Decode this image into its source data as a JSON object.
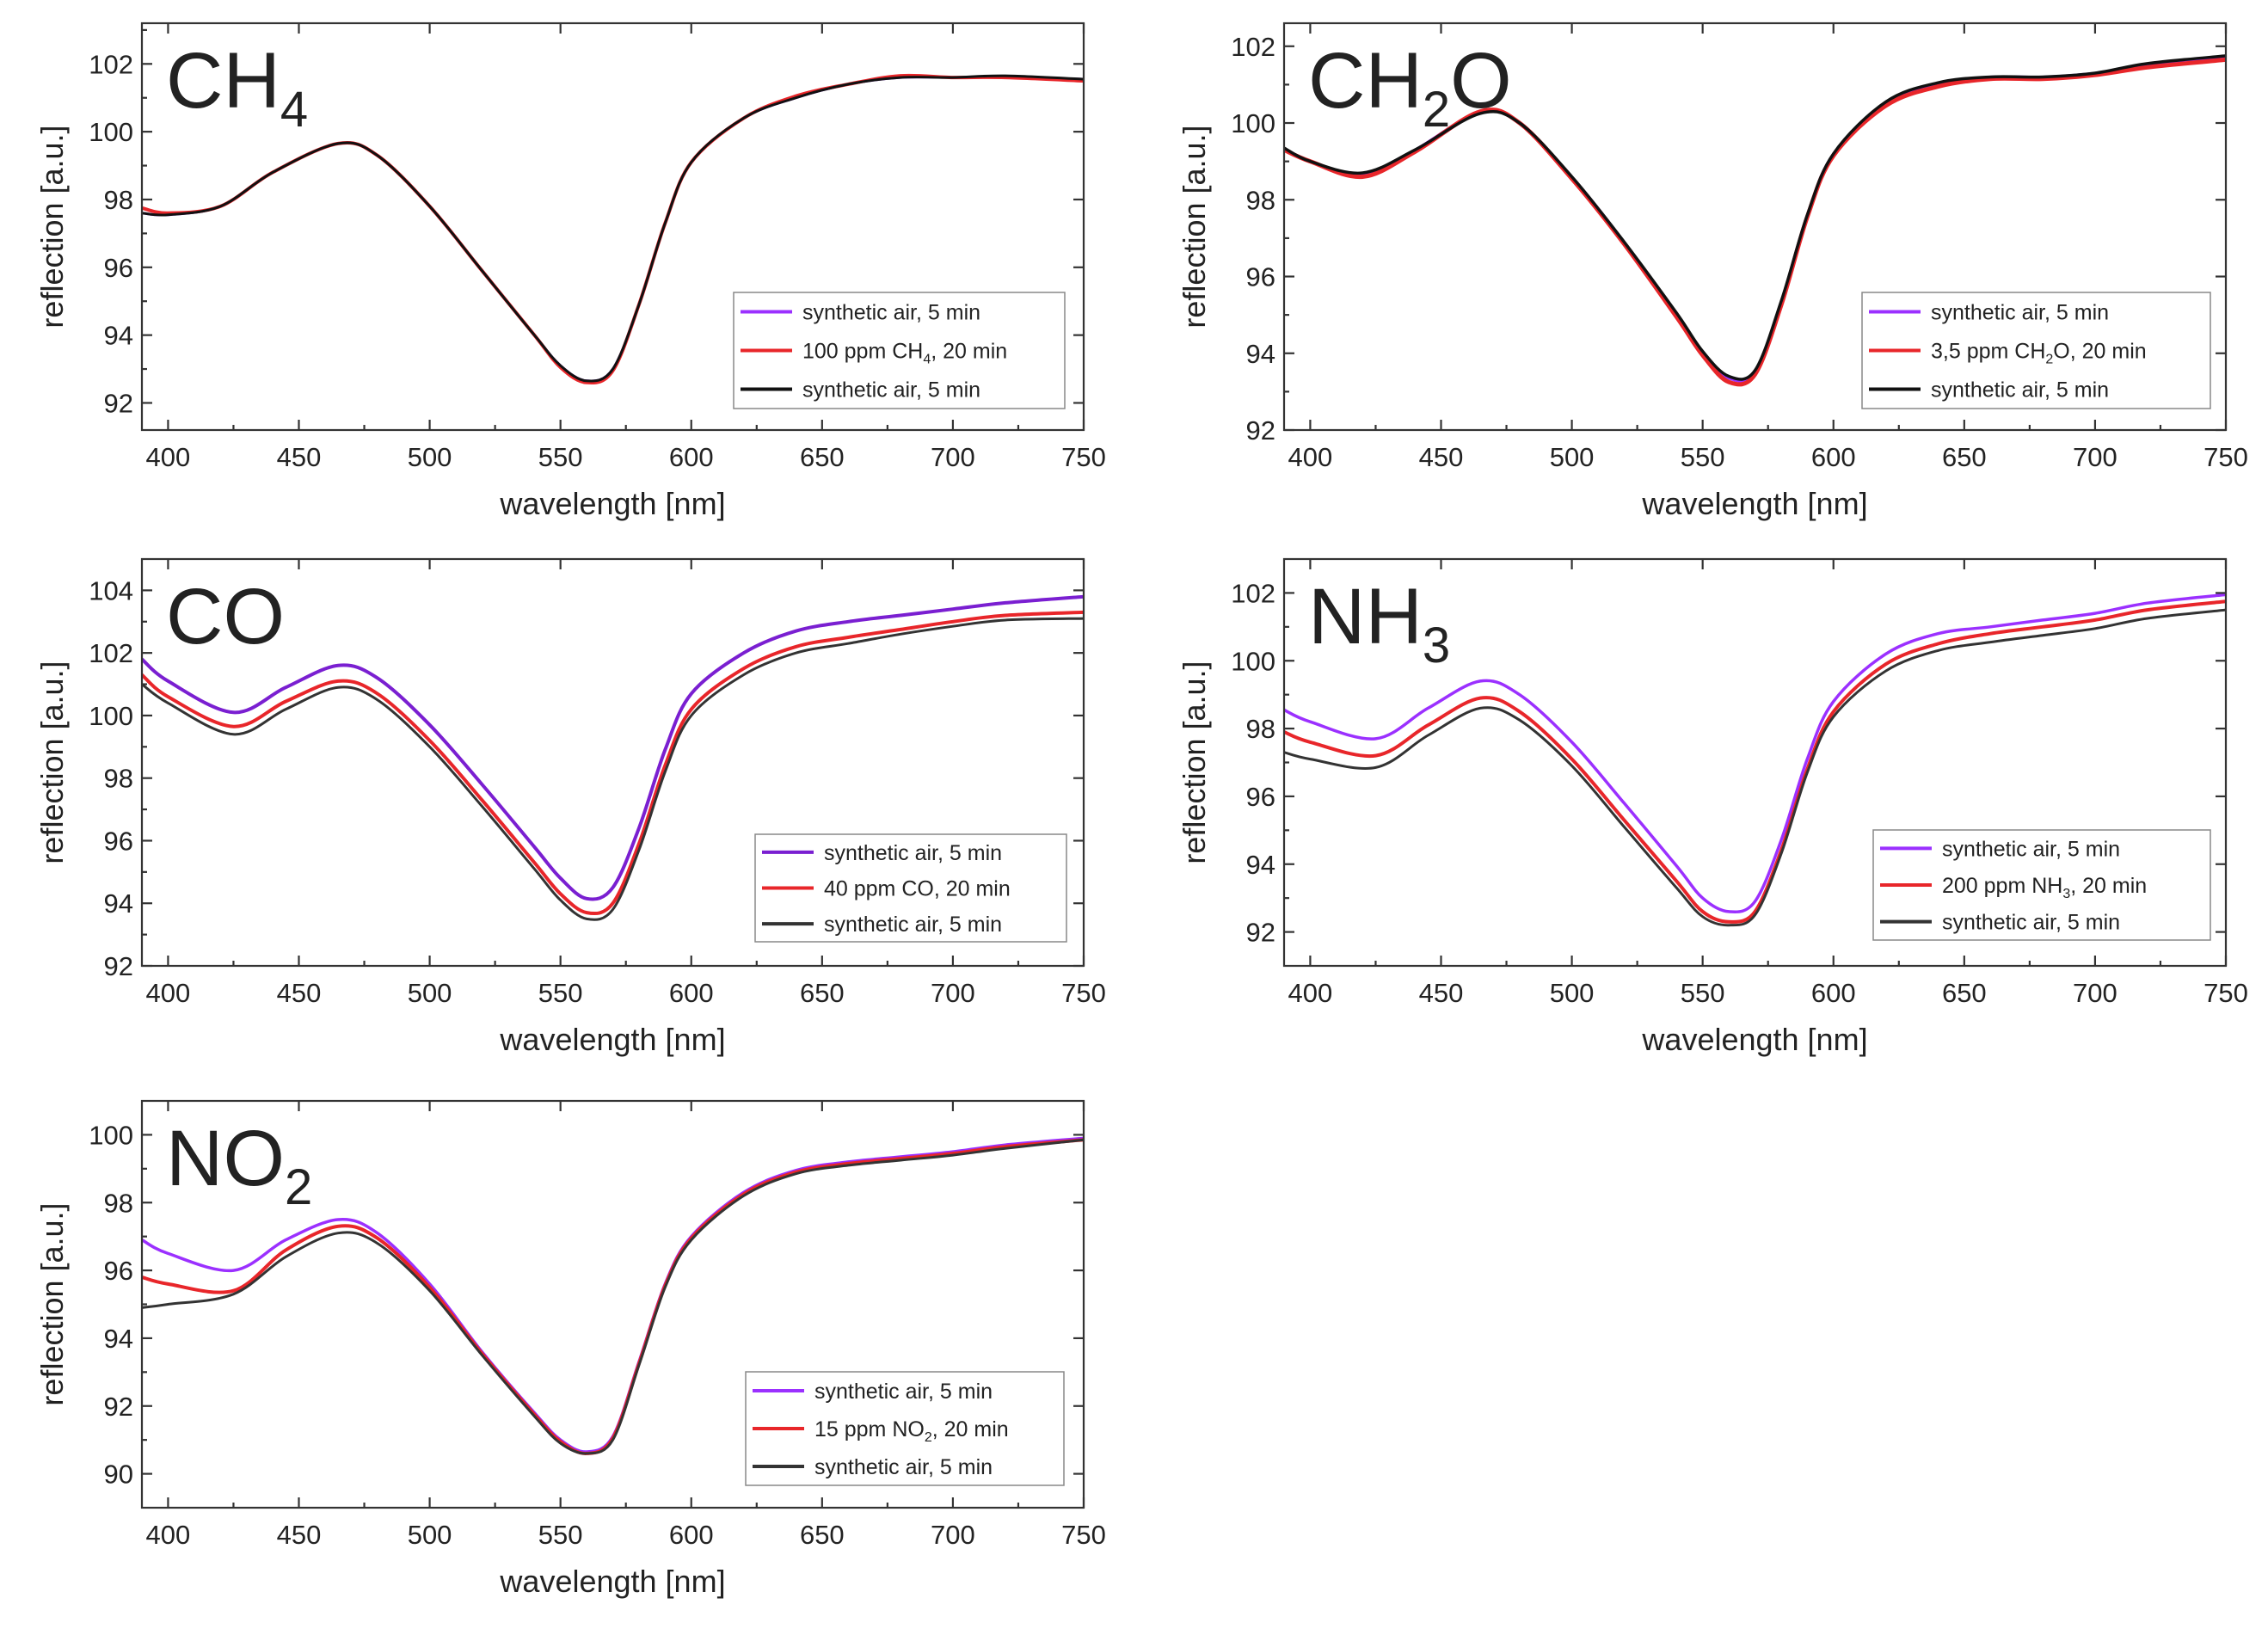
{
  "chart_data": [
    {
      "type": "line",
      "gas": "CH",
      "gas_sub": "4",
      "xlabel": "wavelength [nm]",
      "ylabel": "reflection [a.u.]",
      "xlim": [
        390,
        750
      ],
      "ylim": [
        91.2,
        103.2
      ],
      "xticks": [
        400,
        450,
        500,
        550,
        600,
        650,
        700,
        750
      ],
      "yticks": [
        92,
        94,
        96,
        98,
        100,
        102
      ],
      "legend": [
        {
          "pre": "synthetic air, 5 min",
          "sub": "",
          "post": "",
          "color": "#9b30ff"
        },
        {
          "pre": "100 ppm CH",
          "sub": "4",
          "post": ", 20 min",
          "color": "#e8262a"
        },
        {
          "pre": "synthetic air, 5 min",
          "sub": "",
          "post": "",
          "color": "#111111"
        }
      ],
      "series": [
        {
          "name": "synthetic air, 5 min (before)",
          "color": "#9b30ff",
          "width": 3,
          "x": [
            390,
            400,
            420,
            440,
            465,
            480,
            500,
            520,
            540,
            550,
            560,
            570,
            580,
            590,
            600,
            620,
            640,
            660,
            680,
            700,
            720,
            750
          ],
          "y": [
            97.6,
            97.55,
            97.8,
            98.8,
            99.65,
            99.3,
            97.8,
            95.9,
            94.0,
            93.1,
            92.65,
            93.0,
            94.9,
            97.3,
            99.1,
            100.4,
            101.0,
            101.4,
            101.6,
            101.6,
            101.6,
            101.55
          ]
        },
        {
          "name": "100 ppm CH4, 20 min",
          "color": "#e8262a",
          "width": 4,
          "x": [
            390,
            400,
            420,
            440,
            465,
            480,
            500,
            520,
            540,
            550,
            560,
            570,
            580,
            590,
            600,
            620,
            640,
            660,
            680,
            700,
            720,
            750
          ],
          "y": [
            97.75,
            97.6,
            97.8,
            98.8,
            99.65,
            99.3,
            97.8,
            95.9,
            94.0,
            93.05,
            92.6,
            92.95,
            94.9,
            97.3,
            99.1,
            100.4,
            101.05,
            101.4,
            101.65,
            101.6,
            101.6,
            101.5
          ]
        },
        {
          "name": "synthetic air, 5 min (after)",
          "color": "#111111",
          "width": 3,
          "x": [
            390,
            400,
            420,
            440,
            465,
            480,
            500,
            520,
            540,
            550,
            560,
            570,
            580,
            590,
            600,
            620,
            640,
            660,
            680,
            700,
            720,
            750
          ],
          "y": [
            97.6,
            97.55,
            97.8,
            98.8,
            99.65,
            99.3,
            97.8,
            95.9,
            94.0,
            93.1,
            92.65,
            93.0,
            94.9,
            97.3,
            99.1,
            100.4,
            101.0,
            101.4,
            101.6,
            101.6,
            101.65,
            101.55
          ]
        }
      ]
    },
    {
      "type": "line",
      "gas": "CH",
      "gas_sub": "2",
      "gas_post": "O",
      "xlabel": "wavelength [nm]",
      "ylabel": "reflection [a.u.]",
      "xlim": [
        390,
        750
      ],
      "ylim": [
        92,
        102.6
      ],
      "xticks": [
        400,
        450,
        500,
        550,
        600,
        650,
        700,
        750
      ],
      "yticks": [
        92,
        94,
        96,
        98,
        100,
        102
      ],
      "legend": [
        {
          "pre": "synthetic air, 5 min",
          "sub": "",
          "post": "",
          "color": "#9b30ff"
        },
        {
          "pre": "3,5 ppm CH",
          "sub": "2",
          "post": "O, 20 min",
          "color": "#e8262a"
        },
        {
          "pre": "synthetic air, 5 min",
          "sub": "",
          "post": "",
          "color": "#111111"
        }
      ],
      "series": [
        {
          "name": "synthetic air, 5 min (before)",
          "color": "#9b30ff",
          "width": 3,
          "x": [
            390,
            400,
            420,
            440,
            465,
            480,
            500,
            520,
            540,
            550,
            560,
            570,
            580,
            590,
            600,
            620,
            640,
            660,
            680,
            700,
            720,
            750
          ],
          "y": [
            99.3,
            99.0,
            98.65,
            99.3,
            100.3,
            100.0,
            98.6,
            96.9,
            95.0,
            94.0,
            93.35,
            93.5,
            95.3,
            97.6,
            99.2,
            100.5,
            101.0,
            101.2,
            101.2,
            101.3,
            101.5,
            101.7
          ]
        },
        {
          "name": "3,5 ppm CH2O, 20 min",
          "color": "#e8262a",
          "width": 5,
          "x": [
            390,
            400,
            420,
            440,
            465,
            480,
            500,
            520,
            540,
            550,
            560,
            570,
            580,
            590,
            600,
            620,
            640,
            660,
            680,
            700,
            720,
            750
          ],
          "y": [
            99.3,
            99.0,
            98.6,
            99.25,
            100.3,
            100.0,
            98.55,
            96.85,
            94.95,
            93.95,
            93.25,
            93.45,
            95.25,
            97.55,
            99.15,
            100.45,
            100.95,
            101.15,
            101.15,
            101.25,
            101.45,
            101.65
          ]
        },
        {
          "name": "synthetic air, 5 min (after)",
          "color": "#111111",
          "width": 3.5,
          "x": [
            390,
            400,
            420,
            440,
            465,
            480,
            500,
            520,
            540,
            550,
            560,
            570,
            580,
            590,
            600,
            620,
            640,
            660,
            680,
            700,
            720,
            750
          ],
          "y": [
            99.35,
            99.0,
            98.7,
            99.3,
            100.25,
            100.0,
            98.6,
            96.9,
            95.05,
            94.05,
            93.4,
            93.55,
            95.35,
            97.6,
            99.2,
            100.55,
            101.05,
            101.2,
            101.2,
            101.3,
            101.55,
            101.75
          ]
        }
      ]
    },
    {
      "type": "line",
      "gas": "CO",
      "gas_sub": "",
      "xlabel": "wavelength [nm]",
      "ylabel": "reflection [a.u.]",
      "xlim": [
        390,
        750
      ],
      "ylim": [
        92,
        105
      ],
      "xticks": [
        400,
        450,
        500,
        550,
        600,
        650,
        700,
        750
      ],
      "yticks": [
        92,
        94,
        96,
        98,
        100,
        102,
        104
      ],
      "legend": [
        {
          "pre": "synthetic air, 5 min",
          "sub": "",
          "post": "",
          "color": "#7a1fd1"
        },
        {
          "pre": "40 ppm CO, 20 min",
          "sub": "",
          "post": "",
          "color": "#e8262a"
        },
        {
          "pre": "synthetic air, 5 min",
          "sub": "",
          "post": "",
          "color": "#333333"
        }
      ],
      "series": [
        {
          "name": "synthetic air, 5 min (before)",
          "color": "#7a1fd1",
          "width": 4,
          "x": [
            390,
            400,
            425,
            445,
            465,
            480,
            500,
            520,
            540,
            550,
            560,
            570,
            580,
            590,
            600,
            620,
            640,
            660,
            680,
            700,
            720,
            750
          ],
          "y": [
            101.8,
            101.1,
            100.1,
            100.9,
            101.6,
            101.2,
            99.7,
            97.8,
            95.8,
            94.8,
            94.15,
            94.5,
            96.4,
            98.9,
            100.7,
            102.0,
            102.7,
            103.0,
            103.2,
            103.4,
            103.6,
            103.8
          ]
        },
        {
          "name": "40 ppm CO, 20 min",
          "color": "#e8262a",
          "width": 4,
          "x": [
            390,
            400,
            425,
            445,
            465,
            480,
            500,
            520,
            540,
            550,
            560,
            570,
            580,
            590,
            600,
            620,
            640,
            660,
            680,
            700,
            720,
            750
          ],
          "y": [
            101.3,
            100.6,
            99.65,
            100.45,
            101.1,
            100.7,
            99.2,
            97.3,
            95.3,
            94.3,
            93.7,
            94.0,
            95.9,
            98.4,
            100.2,
            101.5,
            102.2,
            102.5,
            102.75,
            103.0,
            103.2,
            103.3
          ]
        },
        {
          "name": "synthetic air, 5 min (after)",
          "color": "#333333",
          "width": 3,
          "x": [
            390,
            400,
            425,
            445,
            465,
            480,
            500,
            520,
            540,
            550,
            560,
            570,
            580,
            590,
            600,
            620,
            640,
            660,
            680,
            700,
            720,
            750
          ],
          "y": [
            101.0,
            100.4,
            99.4,
            100.2,
            100.9,
            100.5,
            99.0,
            97.1,
            95.1,
            94.1,
            93.5,
            93.8,
            95.7,
            98.2,
            100.0,
            101.3,
            102.0,
            102.3,
            102.6,
            102.85,
            103.05,
            103.1
          ]
        }
      ]
    },
    {
      "type": "line",
      "gas": "NH",
      "gas_sub": "3",
      "xlabel": "wavelength [nm]",
      "ylabel": "reflection [a.u.]",
      "xlim": [
        390,
        750
      ],
      "ylim": [
        91,
        103
      ],
      "xticks": [
        400,
        450,
        500,
        550,
        600,
        650,
        700,
        750
      ],
      "yticks": [
        92,
        94,
        96,
        98,
        100,
        102
      ],
      "legend": [
        {
          "pre": "synthetic air, 5 min",
          "sub": "",
          "post": "",
          "color": "#9b30ff"
        },
        {
          "pre": "200 ppm NH",
          "sub": "3",
          "post": ", 20 min",
          "color": "#e8262a"
        },
        {
          "pre": "synthetic air, 5 min",
          "sub": "",
          "post": "",
          "color": "#333333"
        }
      ],
      "series": [
        {
          "name": "synthetic air, 5 min (before)",
          "color": "#9b30ff",
          "width": 3.5,
          "x": [
            390,
            400,
            425,
            445,
            465,
            480,
            500,
            520,
            540,
            550,
            560,
            570,
            580,
            590,
            600,
            620,
            640,
            660,
            680,
            700,
            720,
            750
          ],
          "y": [
            98.55,
            98.2,
            97.7,
            98.6,
            99.4,
            99.0,
            97.6,
            95.8,
            93.95,
            93.0,
            92.6,
            92.9,
            94.7,
            97.1,
            98.8,
            100.2,
            100.8,
            101.0,
            101.2,
            101.4,
            101.7,
            101.95
          ]
        },
        {
          "name": "200 ppm NH3, 20 min",
          "color": "#e8262a",
          "width": 4,
          "x": [
            390,
            400,
            425,
            445,
            465,
            480,
            500,
            520,
            540,
            550,
            560,
            570,
            580,
            590,
            600,
            620,
            640,
            660,
            680,
            700,
            720,
            750
          ],
          "y": [
            97.9,
            97.6,
            97.2,
            98.1,
            98.9,
            98.5,
            97.1,
            95.3,
            93.5,
            92.6,
            92.3,
            92.6,
            94.4,
            96.8,
            98.5,
            99.9,
            100.5,
            100.8,
            101.0,
            101.2,
            101.5,
            101.75
          ]
        },
        {
          "name": "synthetic air, 5 min (after)",
          "color": "#333333",
          "width": 3,
          "x": [
            390,
            400,
            425,
            445,
            465,
            480,
            500,
            520,
            540,
            550,
            560,
            570,
            580,
            590,
            600,
            620,
            640,
            660,
            680,
            700,
            720,
            750
          ],
          "y": [
            97.3,
            97.1,
            96.85,
            97.8,
            98.6,
            98.25,
            96.9,
            95.1,
            93.3,
            92.45,
            92.2,
            92.5,
            94.3,
            96.7,
            98.35,
            99.7,
            100.3,
            100.55,
            100.75,
            100.95,
            101.25,
            101.5
          ]
        }
      ]
    },
    {
      "type": "line",
      "gas": "NO",
      "gas_sub": "2",
      "xlabel": "wavelength [nm]",
      "ylabel": "reflection [a.u.]",
      "xlim": [
        390,
        750
      ],
      "ylim": [
        89,
        101
      ],
      "xticks": [
        400,
        450,
        500,
        550,
        600,
        650,
        700,
        750
      ],
      "yticks": [
        90,
        92,
        94,
        96,
        98,
        100
      ],
      "legend": [
        {
          "pre": "synthetic air, 5 min",
          "sub": "",
          "post": "",
          "color": "#9b30ff"
        },
        {
          "pre": "15 ppm NO",
          "sub": "2",
          "post": ", 20 min",
          "color": "#e8262a"
        },
        {
          "pre": "synthetic air, 5 min",
          "sub": "",
          "post": "",
          "color": "#333333"
        }
      ],
      "series": [
        {
          "name": "synthetic air, 5 min (before)",
          "color": "#9b30ff",
          "width": 3.5,
          "x": [
            390,
            400,
            425,
            445,
            465,
            480,
            500,
            520,
            540,
            550,
            560,
            570,
            580,
            590,
            600,
            620,
            640,
            660,
            680,
            700,
            720,
            750
          ],
          "y": [
            96.9,
            96.5,
            96.0,
            96.9,
            97.5,
            97.1,
            95.6,
            93.6,
            91.8,
            91.0,
            90.65,
            91.1,
            93.3,
            95.6,
            97.0,
            98.3,
            98.95,
            99.2,
            99.35,
            99.5,
            99.7,
            99.9
          ]
        },
        {
          "name": "15 ppm NO2, 20 min",
          "color": "#e8262a",
          "width": 4,
          "x": [
            390,
            400,
            425,
            445,
            465,
            480,
            500,
            520,
            540,
            550,
            560,
            570,
            580,
            590,
            600,
            620,
            640,
            660,
            680,
            700,
            720,
            750
          ],
          "y": [
            95.8,
            95.6,
            95.4,
            96.6,
            97.3,
            96.95,
            95.5,
            93.55,
            91.75,
            90.95,
            90.6,
            91.05,
            93.25,
            95.55,
            96.95,
            98.25,
            98.9,
            99.15,
            99.3,
            99.45,
            99.65,
            99.85
          ]
        },
        {
          "name": "synthetic air, 5 min (after)",
          "color": "#333333",
          "width": 3,
          "x": [
            390,
            400,
            425,
            445,
            465,
            480,
            500,
            520,
            540,
            550,
            560,
            570,
            580,
            590,
            600,
            620,
            640,
            660,
            680,
            700,
            720,
            750
          ],
          "y": [
            94.9,
            95.0,
            95.3,
            96.4,
            97.1,
            96.8,
            95.4,
            93.5,
            91.7,
            90.9,
            90.6,
            91.0,
            93.2,
            95.5,
            96.9,
            98.2,
            98.85,
            99.1,
            99.25,
            99.4,
            99.6,
            99.85
          ]
        }
      ]
    }
  ]
}
